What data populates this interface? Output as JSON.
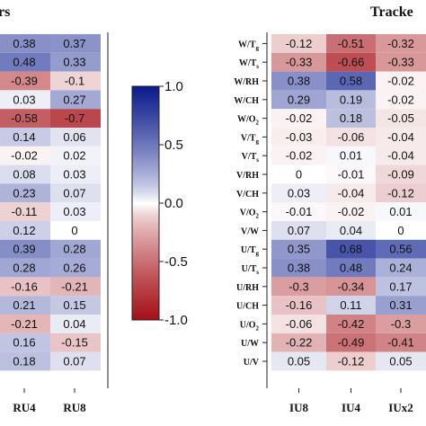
{
  "chart_data": [
    {
      "type": "heatmap",
      "title": "rs",
      "columns": [
        "RU4",
        "RU8"
      ],
      "values": [
        [
          0.38,
          0.37
        ],
        [
          0.48,
          0.33
        ],
        [
          -0.39,
          -0.1
        ],
        [
          0.03,
          0.27
        ],
        [
          -0.58,
          -0.7
        ],
        [
          0.14,
          0.06
        ],
        [
          -0.02,
          0.02
        ],
        [
          0.08,
          0.03
        ],
        [
          0.23,
          0.07
        ],
        [
          -0.11,
          0.03
        ],
        [
          0.12,
          0
        ],
        [
          0.39,
          0.28
        ],
        [
          0.28,
          0.26
        ],
        [
          -0.16,
          -0.21
        ],
        [
          0.21,
          0.15
        ],
        [
          -0.21,
          0.04
        ],
        [
          0.16,
          -0.15
        ],
        [
          0.18,
          0.07
        ]
      ]
    },
    {
      "type": "heatmap",
      "title": "Tracke",
      "columns": [
        "IU8",
        "IU4",
        "IUx2"
      ],
      "rows": [
        {
          "main": "W/T",
          "sub": "g"
        },
        {
          "main": "W/T",
          "sub": "s"
        },
        {
          "main": "W/RH",
          "sub": ""
        },
        {
          "main": "W/CH",
          "sub": ""
        },
        {
          "main": "W/O",
          "sub": "2"
        },
        {
          "main": "V/T",
          "sub": "g"
        },
        {
          "main": "V/T",
          "sub": "s"
        },
        {
          "main": "V/RH",
          "sub": ""
        },
        {
          "main": "V/CH",
          "sub": ""
        },
        {
          "main": "V/O",
          "sub": "2"
        },
        {
          "main": "V/W",
          "sub": ""
        },
        {
          "main": "U/T",
          "sub": "g"
        },
        {
          "main": "U/T",
          "sub": "s"
        },
        {
          "main": "U/RH",
          "sub": ""
        },
        {
          "main": "U/CH",
          "sub": ""
        },
        {
          "main": "U/O",
          "sub": "2"
        },
        {
          "main": "U/W",
          "sub": ""
        },
        {
          "main": "U/V",
          "sub": ""
        }
      ],
      "values": [
        [
          -0.12,
          -0.51,
          -0.32
        ],
        [
          -0.33,
          -0.66,
          -0.33
        ],
        [
          0.38,
          0.58,
          -0.02
        ],
        [
          0.29,
          0.19,
          -0.02
        ],
        [
          -0.02,
          0.18,
          -0.05
        ],
        [
          -0.03,
          -0.06,
          -0.04
        ],
        [
          -0.02,
          0.01,
          -0.04
        ],
        [
          0,
          -0.01,
          -0.09
        ],
        [
          0.03,
          -0.04,
          -0.12
        ],
        [
          -0.01,
          -0.02,
          0.01
        ],
        [
          0.07,
          0.04,
          0
        ],
        [
          0.35,
          0.68,
          0.56
        ],
        [
          0.38,
          0.48,
          0.24
        ],
        [
          -0.3,
          -0.34,
          0.17
        ],
        [
          -0.16,
          0.11,
          0.31
        ],
        [
          -0.06,
          -0.42,
          -0.3
        ],
        [
          -0.22,
          -0.49,
          -0.41
        ],
        [
          0.05,
          -0.12,
          0.05
        ]
      ]
    },
    {
      "type": "colorbar",
      "range": [
        -1.0,
        1.0
      ],
      "ticks": [
        "1.0",
        "0.5",
        "0.0",
        "-0.5",
        "-1.0"
      ],
      "tick_values": [
        1.0,
        0.5,
        0.0,
        -0.5,
        -1.0
      ],
      "colors": {
        "negative": "#a50f15",
        "zero": "#ffffff",
        "positive": "#0a1a8c"
      }
    }
  ]
}
